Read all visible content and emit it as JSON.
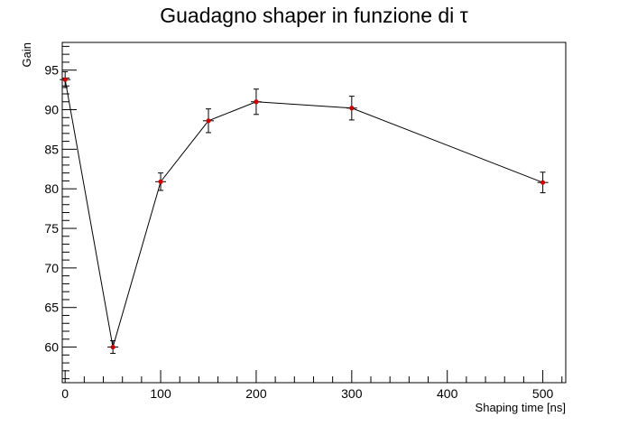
{
  "chart_data": {
    "type": "line",
    "title": "Guadagno shaper in funzione di τ",
    "xlabel": "Shaping time [ns]",
    "ylabel": "Gain",
    "xlim": [
      -3,
      524
    ],
    "ylim": [
      55.5,
      98.5
    ],
    "x_ticks": [
      0,
      100,
      200,
      300,
      400,
      500
    ],
    "y_ticks": [
      60,
      65,
      70,
      75,
      80,
      85,
      90,
      95
    ],
    "grid": false,
    "legend": "none",
    "series": [
      {
        "x": [
          0,
          50,
          100,
          150,
          200,
          300,
          500
        ],
        "y": [
          93.8,
          60.0,
          80.9,
          88.6,
          91.0,
          90.2,
          80.8
        ],
        "yerr": [
          1.0,
          0.8,
          1.1,
          1.5,
          1.6,
          1.5,
          1.3
        ],
        "line_color": "#000000",
        "marker_color": "#cc0000"
      }
    ]
  }
}
